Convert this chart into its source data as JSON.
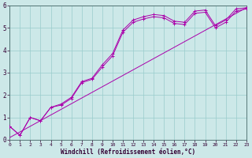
{
  "xlabel": "Windchill (Refroidissement éolien,°C)",
  "ylabel": "",
  "background_color": "#cce8e8",
  "grid_color": "#99cccc",
  "line_color": "#aa00aa",
  "xlim": [
    0,
    23
  ],
  "ylim": [
    0,
    6
  ],
  "xticks": [
    0,
    1,
    2,
    3,
    4,
    5,
    6,
    7,
    8,
    9,
    10,
    11,
    12,
    13,
    14,
    15,
    16,
    17,
    18,
    19,
    20,
    21,
    22,
    23
  ],
  "yticks": [
    0,
    1,
    2,
    3,
    4,
    5,
    6
  ],
  "series": [
    {
      "x": [
        0,
        1,
        2,
        3,
        4,
        5,
        6,
        7,
        8,
        9,
        10,
        11,
        12,
        13,
        14,
        15,
        16,
        17,
        18,
        19,
        20,
        21,
        22,
        23
      ],
      "y": [
        0.6,
        0.2,
        1.0,
        0.85,
        1.45,
        1.6,
        1.9,
        2.6,
        2.75,
        3.35,
        3.85,
        4.9,
        5.35,
        5.5,
        5.6,
        5.55,
        5.3,
        5.25,
        5.75,
        5.8,
        5.1,
        5.35,
        5.85,
        5.9
      ],
      "marker": true
    },
    {
      "x": [
        0,
        1,
        2,
        3,
        4,
        5,
        6,
        7,
        8,
        9,
        10,
        11,
        12,
        13,
        14,
        15,
        16,
        17,
        18,
        19,
        20,
        21,
        22,
        23
      ],
      "y": [
        0.6,
        0.2,
        1.0,
        0.85,
        1.45,
        1.55,
        1.85,
        2.55,
        2.7,
        3.25,
        3.75,
        4.8,
        5.25,
        5.4,
        5.5,
        5.45,
        5.2,
        5.15,
        5.65,
        5.7,
        5.0,
        5.25,
        5.75,
        5.85
      ],
      "marker": true
    },
    {
      "x": [
        0,
        23
      ],
      "y": [
        0.1,
        5.9
      ],
      "marker": false
    }
  ]
}
